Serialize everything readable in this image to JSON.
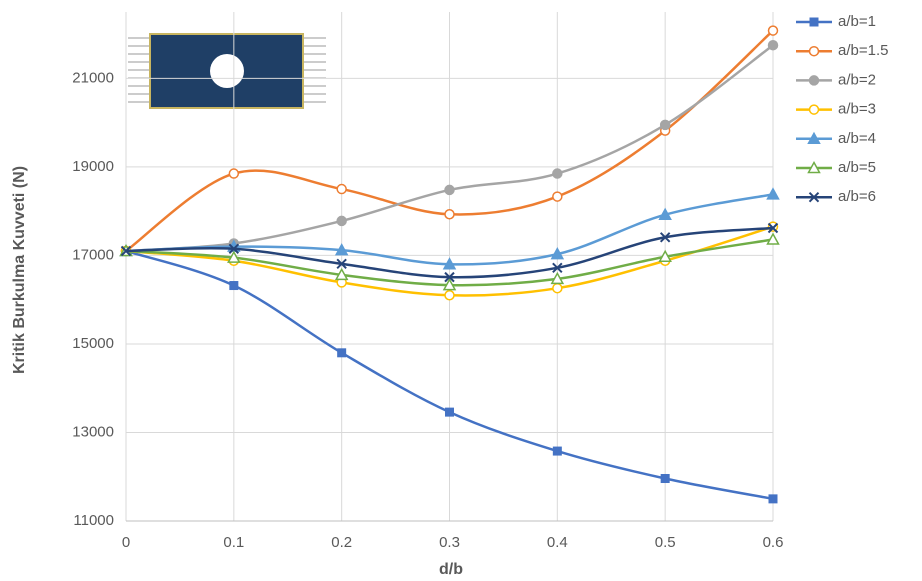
{
  "chart_data": {
    "type": "line",
    "x_label": "d/b",
    "y_label": "Kritik Burkulma Kuvveti (N)",
    "x": [
      0,
      0.1,
      0.2,
      0.3,
      0.4,
      0.5,
      0.6
    ],
    "xlim": [
      0,
      0.6
    ],
    "xticks": [
      0,
      0.1,
      0.2,
      0.3,
      0.4,
      0.5,
      0.6
    ],
    "ylim": [
      11000,
      22500
    ],
    "yticks": [
      11000,
      13000,
      15000,
      17000,
      19000,
      21000
    ],
    "grid": true,
    "smooth": true,
    "legend": "right",
    "series": [
      {
        "name": "a/b=1",
        "color": "#4472c4",
        "marker": "square",
        "values": [
          17100,
          16320,
          14800,
          13460,
          12580,
          11960,
          11500
        ]
      },
      {
        "name": "a/b=1.5",
        "color": "#ed7d31",
        "marker": "open-circle",
        "values": [
          17100,
          18850,
          18500,
          17930,
          18330,
          19820,
          22080
        ]
      },
      {
        "name": "a/b=2",
        "color": "#a5a5a5",
        "marker": "circle",
        "values": [
          17100,
          17270,
          17780,
          18480,
          18850,
          19950,
          21750
        ]
      },
      {
        "name": "a/b=3",
        "color": "#ffc000",
        "marker": "open-circle",
        "values": [
          17100,
          16880,
          16390,
          16100,
          16260,
          16880,
          17650
        ]
      },
      {
        "name": "a/b=4",
        "color": "#5b9bd5",
        "marker": "triangle",
        "values": [
          17100,
          17200,
          17120,
          16800,
          17030,
          17920,
          18380
        ]
      },
      {
        "name": "a/b=5",
        "color": "#70ad47",
        "marker": "open-triangle",
        "values": [
          17100,
          16950,
          16560,
          16330,
          16470,
          16970,
          17360
        ]
      },
      {
        "name": "a/b=6",
        "color": "#264478",
        "marker": "cross",
        "values": [
          17100,
          17150,
          16810,
          16510,
          16720,
          17410,
          17620
        ]
      }
    ]
  }
}
